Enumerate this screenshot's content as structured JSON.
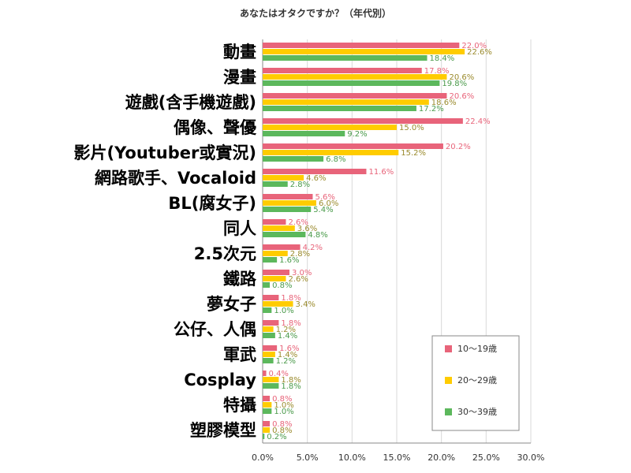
{
  "chart_data": {
    "type": "bar",
    "orientation": "horizontal",
    "title": "あなたはオタクですか？（年代別）",
    "xlim": [
      0,
      30
    ],
    "x_ticks": [
      "0.0%",
      "5.0%",
      "10.0%",
      "15.0%",
      "20.0%",
      "25.0%",
      "30.0%"
    ],
    "grid": true,
    "legend_position": "bottom-right",
    "categories": [
      "動畫",
      "漫畫",
      "遊戲(含手機遊戲)",
      "偶像、聲優",
      "影片(Youtuber或實況)",
      "網路歌手、Vocaloid",
      "BL(腐女子)",
      "同人",
      "2.5次元",
      "鐵路",
      "夢女子",
      "公仔、人偶",
      "軍武",
      "Cosplay",
      "特攝",
      "塑膠模型"
    ],
    "series": [
      {
        "name": "10〜19歳",
        "color": "#e8647a",
        "label_color": "#e8647a",
        "values": [
          22.0,
          17.8,
          20.6,
          22.4,
          20.2,
          11.6,
          5.6,
          2.6,
          4.2,
          3.0,
          1.8,
          1.8,
          1.6,
          0.4,
          0.8,
          0.8
        ],
        "labels": [
          "22.0%",
          "17.8%",
          "20.6%",
          "22.4%",
          "20.2%",
          "11.6%",
          "5.6%",
          "2.6%",
          "4.2%",
          "3.0%",
          "1.8%",
          "1.8%",
          "1.6%",
          "0.4%",
          "0.8%",
          "0.8%"
        ]
      },
      {
        "name": "20〜29歳",
        "color": "#ffcc00",
        "label_color": "#9a8a2c",
        "values": [
          22.6,
          20.6,
          18.6,
          15.0,
          15.2,
          4.6,
          6.0,
          3.6,
          2.8,
          2.6,
          3.4,
          1.2,
          1.4,
          1.8,
          1.0,
          0.8
        ],
        "labels": [
          "22.6%",
          "20.6%",
          "18.6%",
          "15.0%",
          "15.2%",
          "4.6%",
          "6.0%",
          "3.6%",
          "2.8%",
          "2.6%",
          "3.4%",
          "1.2%",
          "1.4%",
          "1.8%",
          "1.0%",
          "0.8%"
        ]
      },
      {
        "name": "30〜39歳",
        "color": "#5cb85c",
        "label_color": "#4a9a4a",
        "values": [
          18.4,
          19.8,
          17.2,
          9.2,
          6.8,
          2.8,
          5.4,
          4.8,
          1.6,
          0.8,
          1.0,
          1.4,
          1.2,
          1.8,
          1.0,
          0.2
        ],
        "labels": [
          "18.4%",
          "19.8%",
          "17.2%",
          "9.2%",
          "6.8%",
          "2.8%",
          "5.4%",
          "4.8%",
          "1.6%",
          "0.8%",
          "1.0%",
          "1.4%",
          "1.2%",
          "1.8%",
          "1.0%",
          "0.2%"
        ]
      }
    ]
  }
}
